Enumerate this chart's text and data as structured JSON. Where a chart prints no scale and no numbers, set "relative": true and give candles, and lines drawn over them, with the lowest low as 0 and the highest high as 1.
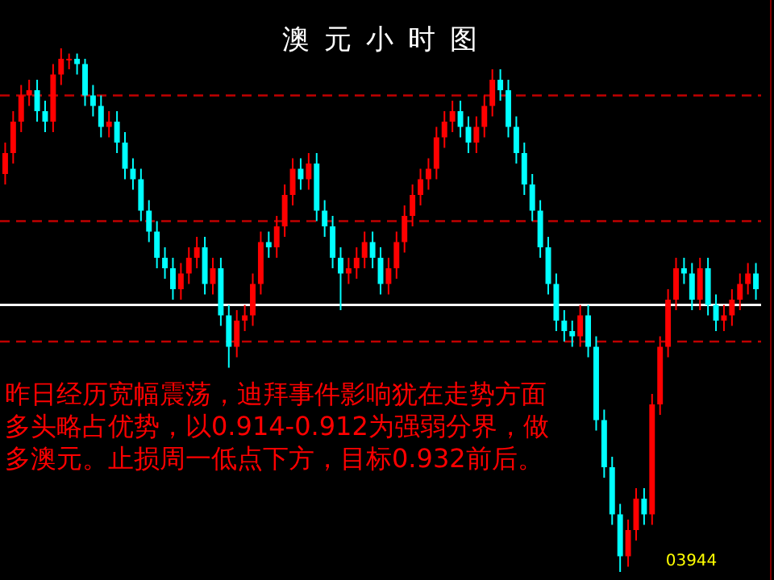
{
  "chart_data": {
    "type": "candlestick",
    "title": "澳元小时图",
    "relative": true,
    "categories": [
      null,
      null,
      null,
      null,
      null,
      null,
      null,
      null,
      null,
      null,
      null,
      null,
      null,
      null,
      null,
      null,
      null,
      null,
      null,
      null,
      null,
      null,
      null,
      null,
      null,
      null,
      null,
      null,
      null,
      null,
      null,
      null,
      null,
      null,
      null,
      null,
      null,
      null,
      null,
      null,
      null,
      null,
      null,
      null,
      null,
      null,
      null,
      null,
      null,
      null,
      null,
      null,
      null,
      null,
      null,
      null,
      null,
      null,
      null,
      null,
      null,
      null,
      null,
      null,
      null,
      null,
      null,
      null,
      null,
      null,
      null,
      null,
      null,
      null,
      null,
      null,
      null,
      null,
      null,
      null,
      null,
      null,
      null,
      null,
      null,
      null,
      null,
      null,
      null,
      null,
      null,
      null,
      null,
      null,
      null
    ],
    "ohlc": [
      [
        0.76,
        0.82,
        0.74,
        0.8
      ],
      [
        0.8,
        0.88,
        0.78,
        0.86
      ],
      [
        0.86,
        0.93,
        0.84,
        0.91
      ],
      [
        0.91,
        0.94,
        0.89,
        0.92
      ],
      [
        0.92,
        0.94,
        0.86,
        0.88
      ],
      [
        0.88,
        0.9,
        0.84,
        0.86
      ],
      [
        0.86,
        0.97,
        0.84,
        0.95
      ],
      [
        0.95,
        1.0,
        0.93,
        0.98
      ],
      [
        0.98,
        0.99,
        0.96,
        0.98
      ],
      [
        0.98,
        0.99,
        0.95,
        0.97
      ],
      [
        0.97,
        0.98,
        0.89,
        0.91
      ],
      [
        0.91,
        0.93,
        0.87,
        0.89
      ],
      [
        0.89,
        0.91,
        0.83,
        0.85
      ],
      [
        0.85,
        0.88,
        0.83,
        0.86
      ],
      [
        0.86,
        0.88,
        0.8,
        0.82
      ],
      [
        0.82,
        0.84,
        0.75,
        0.77
      ],
      [
        0.77,
        0.79,
        0.73,
        0.75
      ],
      [
        0.75,
        0.77,
        0.67,
        0.69
      ],
      [
        0.69,
        0.71,
        0.63,
        0.65
      ],
      [
        0.65,
        0.67,
        0.58,
        0.6
      ],
      [
        0.6,
        0.62,
        0.56,
        0.58
      ],
      [
        0.58,
        0.6,
        0.52,
        0.54
      ],
      [
        0.54,
        0.59,
        0.52,
        0.57
      ],
      [
        0.57,
        0.62,
        0.55,
        0.6
      ],
      [
        0.6,
        0.64,
        0.58,
        0.62
      ],
      [
        0.62,
        0.64,
        0.53,
        0.55
      ],
      [
        0.55,
        0.6,
        0.53,
        0.58
      ],
      [
        0.58,
        0.6,
        0.47,
        0.49
      ],
      [
        0.49,
        0.51,
        0.39,
        0.43
      ],
      [
        0.43,
        0.5,
        0.41,
        0.48
      ],
      [
        0.48,
        0.51,
        0.46,
        0.49
      ],
      [
        0.49,
        0.57,
        0.47,
        0.55
      ],
      [
        0.55,
        0.65,
        0.53,
        0.63
      ],
      [
        0.63,
        0.65,
        0.6,
        0.62
      ],
      [
        0.62,
        0.68,
        0.6,
        0.66
      ],
      [
        0.66,
        0.74,
        0.64,
        0.72
      ],
      [
        0.72,
        0.79,
        0.7,
        0.77
      ],
      [
        0.77,
        0.79,
        0.73,
        0.75
      ],
      [
        0.75,
        0.8,
        0.73,
        0.78
      ],
      [
        0.78,
        0.8,
        0.67,
        0.69
      ],
      [
        0.69,
        0.71,
        0.64,
        0.66
      ],
      [
        0.66,
        0.68,
        0.58,
        0.6
      ],
      [
        0.6,
        0.62,
        0.5,
        0.57
      ],
      [
        0.57,
        0.6,
        0.55,
        0.58
      ],
      [
        0.58,
        0.62,
        0.56,
        0.6
      ],
      [
        0.6,
        0.65,
        0.58,
        0.63
      ],
      [
        0.63,
        0.65,
        0.58,
        0.6
      ],
      [
        0.6,
        0.62,
        0.53,
        0.55
      ],
      [
        0.55,
        0.6,
        0.53,
        0.58
      ],
      [
        0.58,
        0.65,
        0.56,
        0.63
      ],
      [
        0.63,
        0.7,
        0.61,
        0.68
      ],
      [
        0.68,
        0.74,
        0.66,
        0.72
      ],
      [
        0.72,
        0.77,
        0.7,
        0.75
      ],
      [
        0.75,
        0.79,
        0.73,
        0.77
      ],
      [
        0.77,
        0.85,
        0.75,
        0.83
      ],
      [
        0.83,
        0.88,
        0.81,
        0.86
      ],
      [
        0.86,
        0.9,
        0.84,
        0.88
      ],
      [
        0.88,
        0.9,
        0.83,
        0.85
      ],
      [
        0.85,
        0.87,
        0.8,
        0.82
      ],
      [
        0.82,
        0.87,
        0.8,
        0.85
      ],
      [
        0.85,
        0.91,
        0.83,
        0.89
      ],
      [
        0.89,
        0.96,
        0.87,
        0.94
      ],
      [
        0.94,
        0.96,
        0.9,
        0.92
      ],
      [
        0.92,
        0.94,
        0.83,
        0.85
      ],
      [
        0.85,
        0.87,
        0.78,
        0.8
      ],
      [
        0.8,
        0.82,
        0.72,
        0.74
      ],
      [
        0.74,
        0.76,
        0.67,
        0.69
      ],
      [
        0.69,
        0.71,
        0.6,
        0.62
      ],
      [
        0.62,
        0.64,
        0.53,
        0.55
      ],
      [
        0.55,
        0.57,
        0.46,
        0.48
      ],
      [
        0.48,
        0.5,
        0.44,
        0.46
      ],
      [
        0.46,
        0.48,
        0.43,
        0.45
      ],
      [
        0.45,
        0.51,
        0.43,
        0.49
      ],
      [
        0.49,
        0.51,
        0.41,
        0.43
      ],
      [
        0.43,
        0.45,
        0.27,
        0.29
      ],
      [
        0.29,
        0.31,
        0.18,
        0.2
      ],
      [
        0.2,
        0.22,
        0.09,
        0.11
      ],
      [
        0.11,
        0.13,
        0.0,
        0.03
      ],
      [
        0.03,
        0.1,
        0.01,
        0.08
      ],
      [
        0.08,
        0.16,
        0.06,
        0.14
      ],
      [
        0.14,
        0.16,
        0.09,
        0.11
      ],
      [
        0.11,
        0.34,
        0.09,
        0.32
      ],
      [
        0.32,
        0.45,
        0.3,
        0.43
      ],
      [
        0.43,
        0.54,
        0.41,
        0.52
      ],
      [
        0.52,
        0.6,
        0.5,
        0.58
      ],
      [
        0.58,
        0.6,
        0.55,
        0.57
      ],
      [
        0.57,
        0.59,
        0.5,
        0.52
      ],
      [
        0.52,
        0.6,
        0.5,
        0.58
      ],
      [
        0.58,
        0.6,
        0.49,
        0.51
      ],
      [
        0.51,
        0.53,
        0.46,
        0.48
      ],
      [
        0.48,
        0.51,
        0.46,
        0.49
      ],
      [
        0.49,
        0.54,
        0.47,
        0.52
      ],
      [
        0.52,
        0.57,
        0.5,
        0.55
      ],
      [
        0.55,
        0.59,
        0.53,
        0.57
      ],
      [
        0.57,
        0.59,
        0.52,
        0.54
      ]
    ],
    "ref_lines": [
      {
        "axis": "y",
        "value": 0.91,
        "color": "#c00000",
        "line_style": "dashed"
      },
      {
        "axis": "y",
        "value": 0.67,
        "color": "#c00000",
        "line_style": "dashed"
      },
      {
        "axis": "y",
        "value": 0.51,
        "color": "#ffffff",
        "line_style": "solid"
      },
      {
        "axis": "y",
        "value": 0.44,
        "color": "#c00000",
        "line_style": "dashed"
      }
    ],
    "annotations": [
      "昨日经历宽幅震荡，迪拜事件影响犹在走势方面多头略占优势，以0.914-0.912为强弱分界，做多澳元。止损周一低点下方，目标0.932前后。",
      "03944"
    ]
  }
}
